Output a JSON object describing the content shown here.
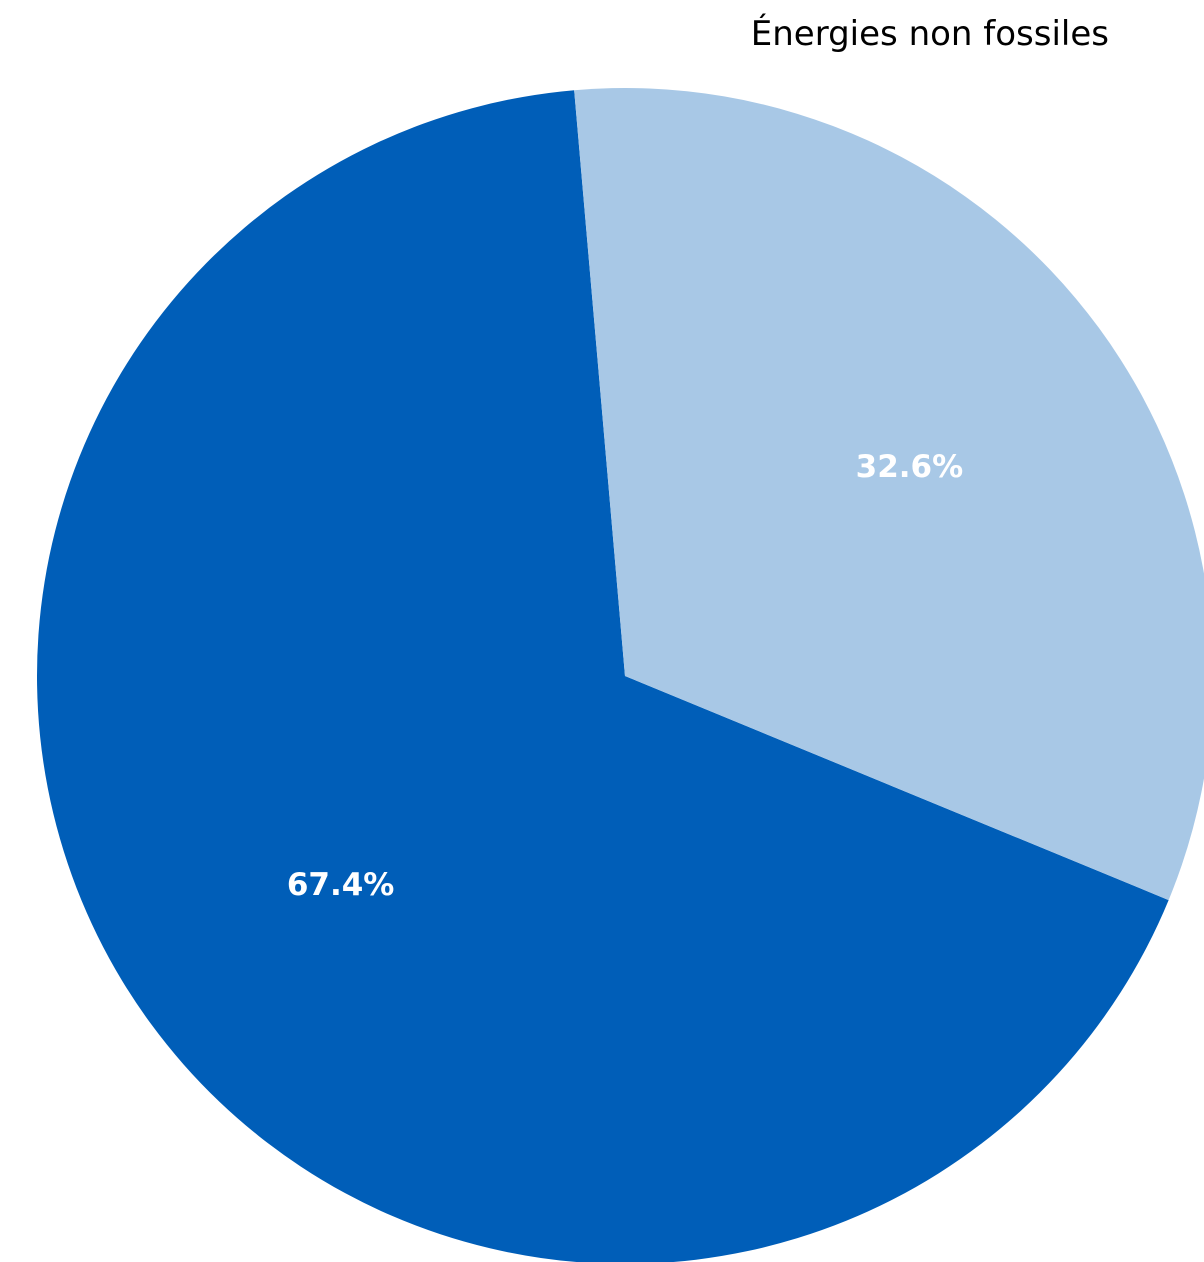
{
  "chart_data": {
    "type": "pie",
    "title": "Énergies non fossiles",
    "slices": [
      {
        "value": 67.4,
        "label": "67.4%",
        "color": "#005eb8"
      },
      {
        "value": 32.6,
        "label": "32.6%",
        "color": "#a8c8e6"
      }
    ],
    "legend": "none",
    "direction": "counterclockwise"
  }
}
